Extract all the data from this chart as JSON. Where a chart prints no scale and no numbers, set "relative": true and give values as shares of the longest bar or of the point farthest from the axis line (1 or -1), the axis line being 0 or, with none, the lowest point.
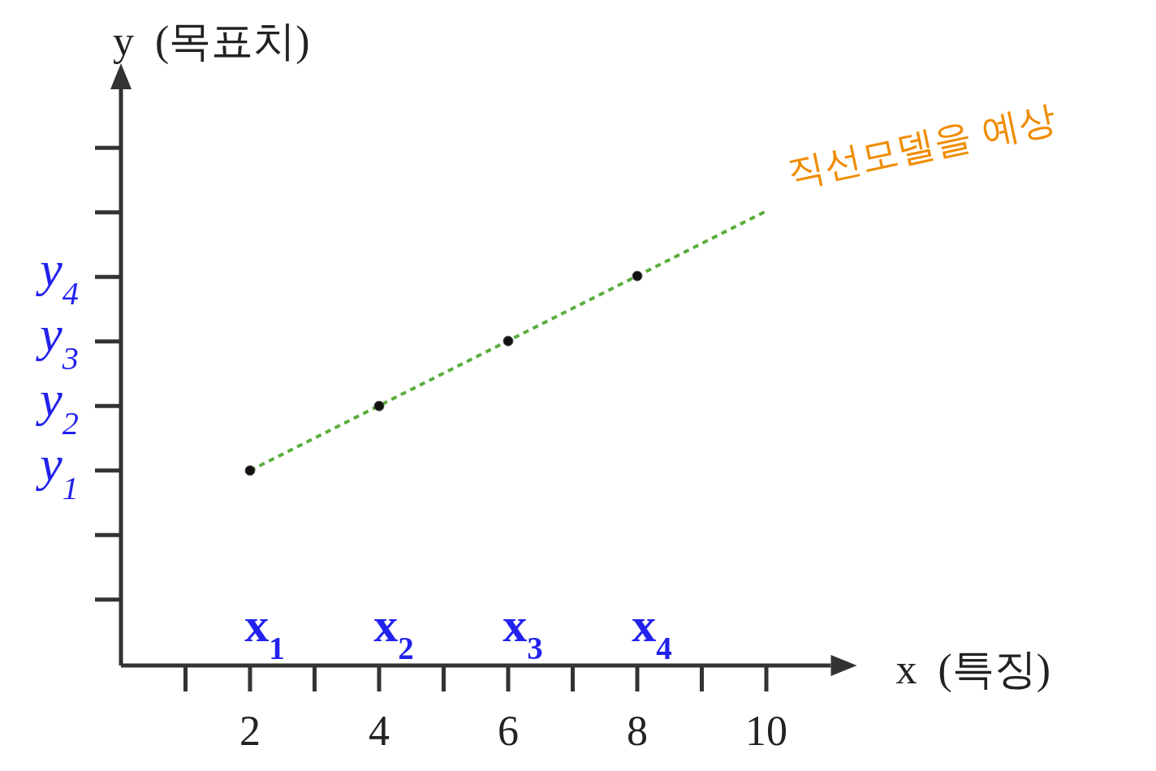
{
  "chart_data": {
    "type": "scatter",
    "xlabel": "x  (특징)",
    "ylabel": "y  (목표치)",
    "xlim": [
      0,
      11
    ],
    "xticks": [
      2,
      4,
      6,
      8,
      10
    ],
    "relative": true,
    "series": [
      {
        "type": "line",
        "color": "#5aae3c",
        "line_style": "dashed",
        "x": [
          2,
          10
        ],
        "values": [
          0.429,
          1
        ]
      },
      {
        "color": "#111111",
        "marker": "circle",
        "x": [
          2,
          4,
          6,
          8
        ],
        "values": [
          0.429,
          0.571,
          0.714,
          0.857
        ]
      }
    ],
    "annotations": [
      "y$_{1}$",
      "y$_{2}$",
      "y$_{3}$",
      "y$_{4}$",
      {
        "text": "x$_{1}$",
        "x": 2
      },
      {
        "text": "x$_{2}$",
        "x": 4
      },
      {
        "text": "x$_{3}$",
        "x": 6
      },
      {
        "text": "x$_{4}$",
        "x": 8
      },
      {
        "text": "직선모델을 예상",
        "x": 10,
        "y": 1
      }
    ]
  }
}
